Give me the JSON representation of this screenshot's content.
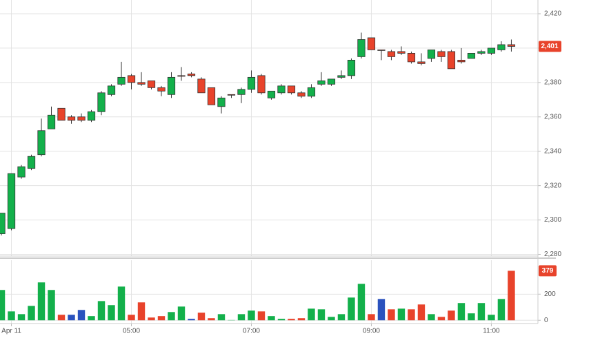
{
  "chart_data": [
    {
      "type": "candlestick",
      "open": [
        2292,
        2295,
        2325,
        2330,
        2338,
        2353,
        2365,
        2360,
        2360,
        2358,
        2363,
        2373,
        2379,
        2384,
        2380,
        2381,
        2377,
        2373,
        2384,
        2385,
        2382,
        2377,
        2366,
        2373,
        2373,
        2376,
        2384,
        2371,
        2374,
        2378,
        2374,
        2372,
        2379,
        2379,
        2383,
        2384,
        2395,
        2406,
        2399,
        2398,
        2398,
        2397,
        2392,
        2394,
        2398,
        2398,
        2393,
        2394,
        2397,
        2397,
        2399,
        2402
      ],
      "high": [
        2304,
        2327,
        2332,
        2338,
        2359,
        2366,
        2365,
        2361,
        2362,
        2364,
        2375,
        2379,
        2392,
        2385,
        2386,
        2381,
        2378,
        2386,
        2389,
        2386,
        2383,
        2377,
        2372,
        2373,
        2377,
        2387,
        2385,
        2375,
        2379,
        2378,
        2375,
        2379,
        2386,
        2382,
        2387,
        2394,
        2409,
        2406,
        2399,
        2399,
        2401,
        2398,
        2397,
        2399,
        2399,
        2399,
        2400,
        2397,
        2399,
        2400,
        2404,
        2405
      ],
      "low": [
        2291,
        2294,
        2324,
        2329,
        2337,
        2353,
        2358,
        2356,
        2357,
        2357,
        2361,
        2372,
        2378,
        2376,
        2378,
        2376,
        2372,
        2371,
        2381,
        2383,
        2374,
        2367,
        2362,
        2371,
        2368,
        2374,
        2373,
        2370,
        2373,
        2373,
        2371,
        2371,
        2378,
        2378,
        2382,
        2382,
        2394,
        2399,
        2393,
        2393,
        2396,
        2391,
        2390,
        2392,
        2392,
        2388,
        2391,
        2394,
        2396,
        2396,
        2398,
        2398
      ],
      "close": [
        2304,
        2327,
        2331,
        2337,
        2352,
        2361,
        2358,
        2358,
        2358,
        2363,
        2374,
        2378,
        2383,
        2380,
        2379,
        2377,
        2375,
        2383,
        2384,
        2384,
        2374,
        2367,
        2371,
        2373,
        2376,
        2383,
        2374,
        2375,
        2378,
        2374,
        2372,
        2377,
        2381,
        2382,
        2384,
        2393,
        2405,
        2399,
        2399,
        2395,
        2397,
        2392,
        2391,
        2399,
        2395,
        2388,
        2392,
        2397,
        2398,
        2400,
        2402,
        2401
      ],
      "up_color": "#13b04b",
      "down_color": "#e8432b",
      "last_label": "2,401",
      "xlim": [
        -0.14,
        53.66
      ],
      "ylim": [
        2279,
        2428
      ],
      "yticks": [
        {
          "value": 2280,
          "label": "2,280"
        },
        {
          "value": 2300,
          "label": "2,300"
        },
        {
          "value": 2320,
          "label": "2,320"
        },
        {
          "value": 2340,
          "label": "2,340"
        },
        {
          "value": 2360,
          "label": "2,360"
        },
        {
          "value": 2380,
          "label": "2,380"
        },
        {
          "value": 2400,
          "label": "2,400"
        },
        {
          "value": 2420,
          "label": "2,420"
        }
      ],
      "grid": true
    },
    {
      "type": "bar",
      "values": [
        232,
        68,
        47,
        110,
        290,
        232,
        42,
        42,
        79,
        32,
        147,
        116,
        258,
        42,
        137,
        21,
        32,
        63,
        105,
        11,
        58,
        16,
        47,
        2,
        47,
        74,
        68,
        32,
        11,
        11,
        16,
        89,
        84,
        26,
        47,
        174,
        279,
        47,
        163,
        84,
        89,
        84,
        121,
        47,
        26,
        74,
        132,
        53,
        132,
        42,
        163,
        379
      ],
      "colors": [
        "#13b04b",
        "#13b04b",
        "#13b04b",
        "#13b04b",
        "#13b04b",
        "#13b04b",
        "#e8432b",
        "#2a52be",
        "#2a52be",
        "#13b04b",
        "#13b04b",
        "#13b04b",
        "#13b04b",
        "#e8432b",
        "#e8432b",
        "#e8432b",
        "#e8432b",
        "#13b04b",
        "#13b04b",
        "#2a52be",
        "#e8432b",
        "#e8432b",
        "#13b04b",
        "#13b04b",
        "#13b04b",
        "#13b04b",
        "#e8432b",
        "#13b04b",
        "#13b04b",
        "#e8432b",
        "#e8432b",
        "#13b04b",
        "#13b04b",
        "#13b04b",
        "#13b04b",
        "#13b04b",
        "#13b04b",
        "#e8432b",
        "#2a52be",
        "#e8432b",
        "#13b04b",
        "#e8432b",
        "#e8432b",
        "#13b04b",
        "#e8432b",
        "#e8432b",
        "#13b04b",
        "#13b04b",
        "#13b04b",
        "#13b04b",
        "#13b04b",
        "#e8432b"
      ],
      "last_label": "379",
      "xlim": [
        -0.14,
        53.66
      ],
      "ylim": [
        -25,
        460
      ],
      "yticks": [
        0,
        200
      ],
      "xticks": [
        {
          "value": 1,
          "label": "Apr 11"
        },
        {
          "value": 13,
          "label": "05:00"
        },
        {
          "value": 25,
          "label": "07:00"
        },
        {
          "value": 37,
          "label": "09:00"
        },
        {
          "value": 49,
          "label": "11:00"
        }
      ],
      "grid": true
    }
  ]
}
